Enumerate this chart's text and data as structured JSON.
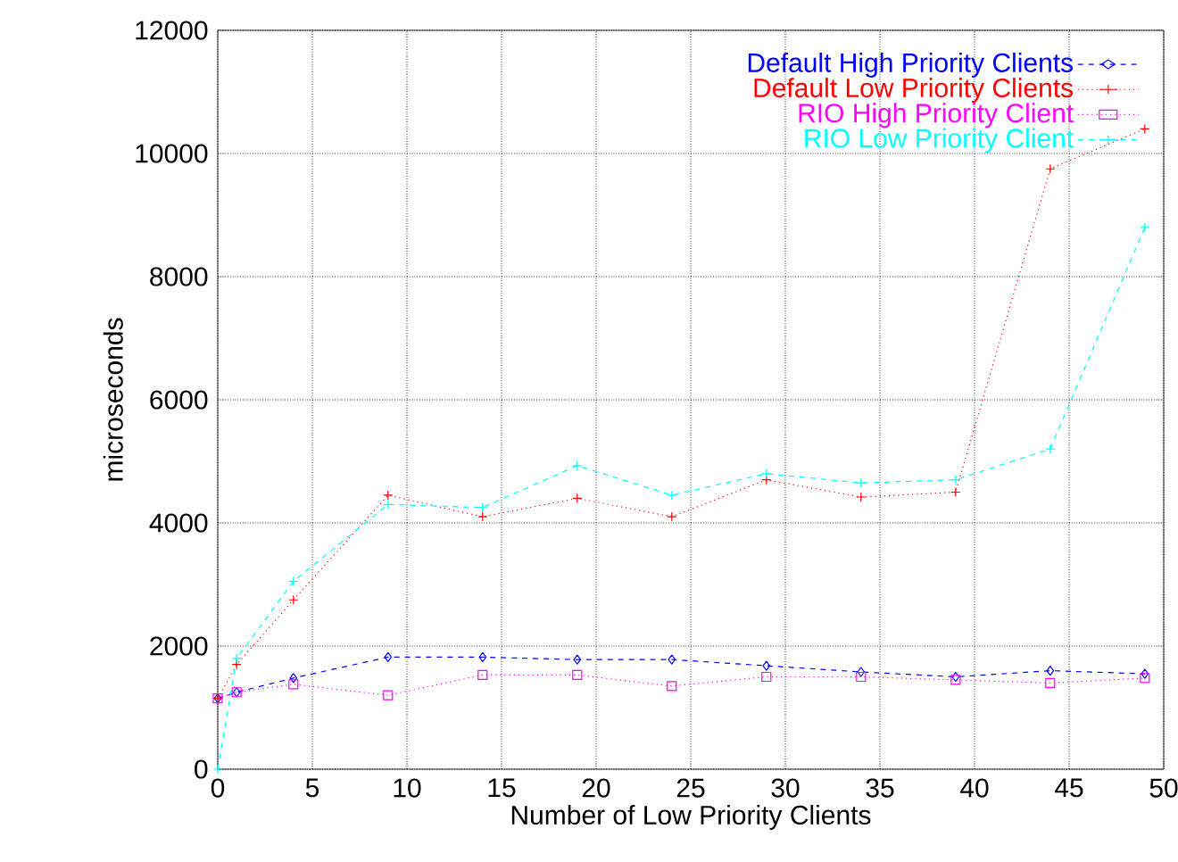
{
  "chart_data": {
    "type": "line",
    "xlabel": "Number of Low Priority Clients",
    "ylabel": "microseconds",
    "x": [
      0,
      1,
      4,
      9,
      14,
      19,
      24,
      29,
      34,
      39,
      44,
      49
    ],
    "xlim": [
      0,
      50
    ],
    "xticks": [
      0,
      5,
      10,
      15,
      20,
      25,
      30,
      35,
      40,
      45,
      50
    ],
    "ylim": [
      0,
      12000
    ],
    "yticks": [
      0,
      2000,
      4000,
      6000,
      8000,
      10000,
      12000
    ],
    "grid": true,
    "legend": "top right",
    "series": [
      {
        "name": "Default High Priority Clients",
        "color": "#0000ff",
        "marker": "diamond",
        "line_style": "dashed",
        "values": [
          1150,
          1250,
          1480,
          1820,
          1820,
          1780,
          1780,
          1680,
          1580,
          1500,
          1600,
          1550
        ]
      },
      {
        "name": "Default Low Priority Clients",
        "color": "#ff0000",
        "marker": "cross",
        "line_style": "dotted",
        "values": [
          1150,
          1700,
          2750,
          4450,
          4100,
          4400,
          4100,
          4700,
          4420,
          4500,
          9750,
          10400
        ]
      },
      {
        "name": "RIO High Priority Client",
        "color": "#ff00ff",
        "marker": "square",
        "line_style": "dotted",
        "values": [
          1150,
          1250,
          1380,
          1200,
          1530,
          1530,
          1350,
          1500,
          1500,
          1450,
          1400,
          1480
        ]
      },
      {
        "name": "RIO Low Priority Client",
        "color": "#00ffff",
        "marker": "cross",
        "line_style": "dashed",
        "values": [
          0,
          1800,
          3050,
          4300,
          4250,
          4930,
          4450,
          4800,
          4650,
          4700,
          5200,
          8800
        ]
      }
    ]
  }
}
